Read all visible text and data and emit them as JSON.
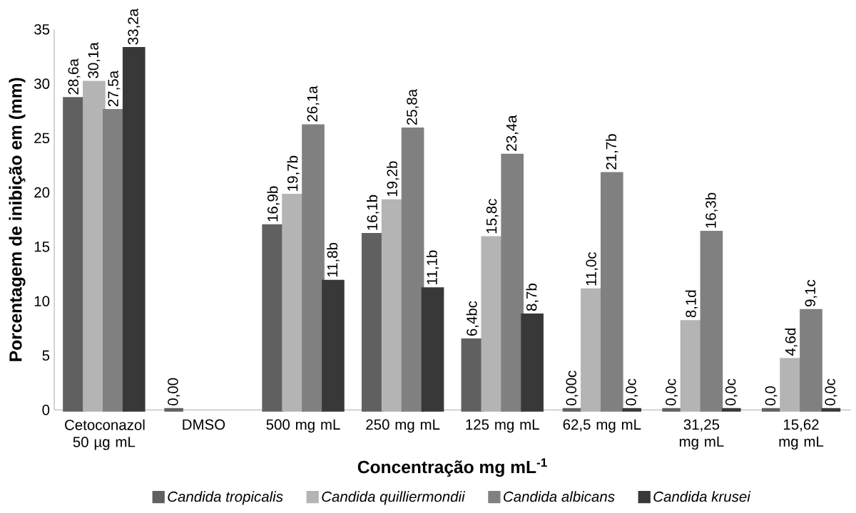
{
  "chart_data": {
    "type": "bar",
    "xlabel": "Concentração mg mL$^{-1}$",
    "ylabel": "Porcentagem de inibição em (mm)",
    "categories": [
      "Cetoconazol 50 µg mL",
      "DMSO",
      "500 mg mL",
      "250 mg mL",
      "125 mg mL",
      "62,5 mg mL",
      "31,25 mg mL",
      "15,62 mg mL"
    ],
    "series": [
      {
        "name": "Candida tropicalis",
        "color": "#606060",
        "values": [
          28.6,
          0,
          16.9,
          16.1,
          6.4,
          0,
          0,
          0
        ],
        "value_labels": [
          "28,6a",
          "0,00",
          "16,9b",
          "16,1b",
          "6,4bc",
          "0,00c",
          "0,0c",
          "0,0"
        ]
      },
      {
        "name": "Candida quilliermondii",
        "color": "#b4b4b4",
        "values": [
          30.1,
          null,
          19.7,
          19.2,
          15.8,
          11.0,
          8.1,
          4.6
        ],
        "value_labels": [
          "30,1a",
          null,
          "19,7b",
          "19,2b",
          "15,8c",
          "11,0c",
          "8,1d",
          "4,6d"
        ]
      },
      {
        "name": "Candida albicans",
        "color": "#808080",
        "values": [
          27.5,
          null,
          26.1,
          25.8,
          23.4,
          21.7,
          16.3,
          9.1
        ],
        "value_labels": [
          "27,5a",
          null,
          "26,1a",
          "25,8a",
          "23,4a",
          "21,7b",
          "16,3b",
          "9,1c"
        ]
      },
      {
        "name": "Candida krusei",
        "color": "#383838",
        "values": [
          33.2,
          null,
          11.8,
          11.1,
          8.7,
          0,
          0,
          0
        ],
        "value_labels": [
          "33,2a",
          null,
          "11,8b",
          "11,1b",
          "8,7b",
          "0,0c",
          "0,0c",
          "0,0c"
        ]
      }
    ],
    "ylim": [
      0,
      35
    ],
    "yticks": [
      0,
      5,
      10,
      15,
      20,
      25,
      30,
      35
    ],
    "legend": "bottom"
  }
}
